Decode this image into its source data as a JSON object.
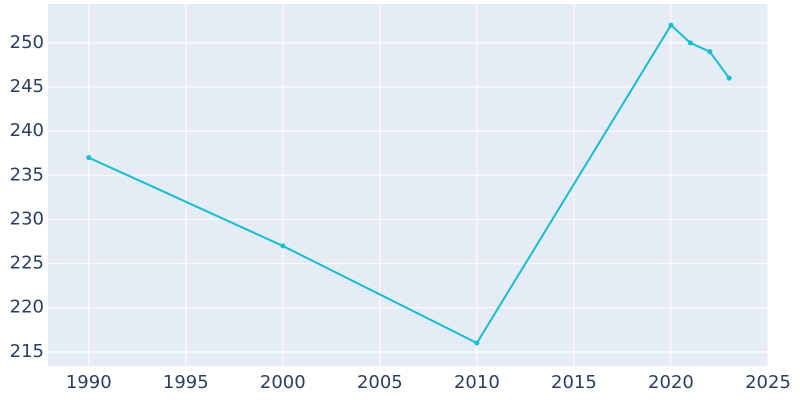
{
  "chart_data": {
    "type": "line",
    "x": [
      1990,
      2000,
      2010,
      2020,
      2021,
      2022,
      2023
    ],
    "series": [
      {
        "color": "#17becf",
        "values": [
          237,
          227,
          216,
          252,
          250,
          249,
          246
        ]
      }
    ],
    "xlim": [
      1987.9,
      2025.0
    ],
    "xticks": [
      1990,
      1995,
      2000,
      2005,
      2010,
      2015,
      2020,
      2025
    ],
    "ylim": [
      213.4,
      254.4
    ],
    "yticks": [
      215,
      220,
      225,
      230,
      235,
      240,
      245,
      250
    ],
    "grid": true
  }
}
